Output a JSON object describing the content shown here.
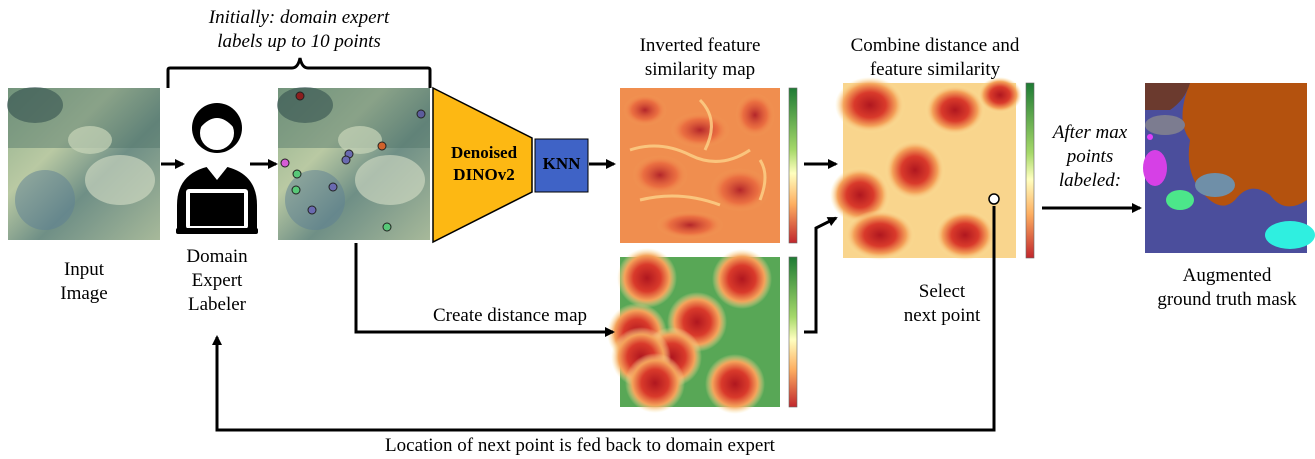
{
  "top_note": "Initially: domain expert\nlabels up to 10 points",
  "input_label": "Input\nImage",
  "labeler_label": "Domain\nExpert\nLabeler",
  "model_label": "Denoised\nDINOv2",
  "knn_label": "KNN",
  "feature_map_title": "Inverted feature\nsimilarity map",
  "combine_title": "Combine distance and\nfeature similarity",
  "distance_label": "Create distance map",
  "select_label": "Select\nnext point",
  "after_label": "After max\npoints\nlabeled:",
  "mask_label": "Augmented\nground truth mask",
  "feedback_label": "Location of next point is fed back to domain expert",
  "colors": {
    "model": "#FDB813",
    "knn": "#3F63C6",
    "reef_light": "#B7C9A6",
    "reef_dark": "#2E4A4A",
    "heat_red": "#C1272D",
    "heat_yellow": "#FBE7A1",
    "heat_green": "#2E8B3E"
  },
  "icons": [
    "person-laptop-icon"
  ]
}
